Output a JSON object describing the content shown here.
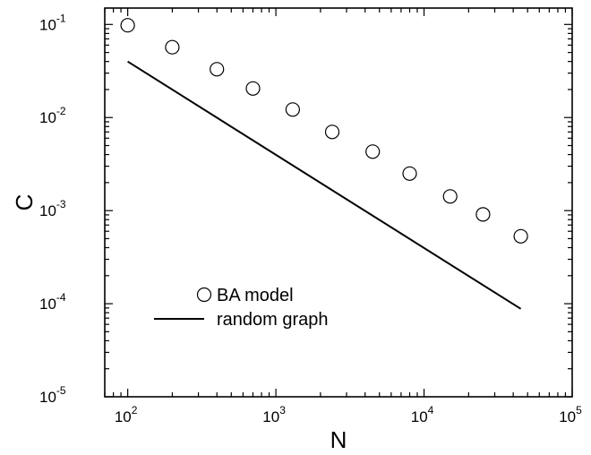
{
  "chart_data": {
    "type": "scatter",
    "xlabel": "N",
    "ylabel": "C",
    "xscale": "log",
    "yscale": "log",
    "xlim": [
      70,
      100000
    ],
    "ylim": [
      1e-05,
      0.15
    ],
    "grid": false,
    "legend_position": "bottom-left",
    "x_ticks": [
      {
        "base": "10",
        "exp": "2",
        "value": 100
      },
      {
        "base": "10",
        "exp": "3",
        "value": 1000
      },
      {
        "base": "10",
        "exp": "4",
        "value": 10000
      },
      {
        "base": "10",
        "exp": "5",
        "value": 100000
      }
    ],
    "y_ticks": [
      {
        "base": "10",
        "exp": "-5",
        "value": 1e-05
      },
      {
        "base": "10",
        "exp": "-4",
        "value": 0.0001
      },
      {
        "base": "10",
        "exp": "-3",
        "value": 0.001
      },
      {
        "base": "10",
        "exp": "-2",
        "value": 0.01
      },
      {
        "base": "10",
        "exp": "-1",
        "value": 0.1
      }
    ],
    "series": [
      {
        "name": "BA model",
        "style": "open-circle",
        "points": [
          {
            "x": 100,
            "y": 0.098
          },
          {
            "x": 200,
            "y": 0.057
          },
          {
            "x": 400,
            "y": 0.033
          },
          {
            "x": 700,
            "y": 0.0205
          },
          {
            "x": 1300,
            "y": 0.0122
          },
          {
            "x": 2400,
            "y": 0.007
          },
          {
            "x": 4500,
            "y": 0.0043
          },
          {
            "x": 8000,
            "y": 0.0025
          },
          {
            "x": 15000,
            "y": 0.00142
          },
          {
            "x": 25000,
            "y": 0.00091
          },
          {
            "x": 45000,
            "y": 0.00053
          }
        ]
      },
      {
        "name": "random graph",
        "style": "solid-line",
        "points": [
          {
            "x": 100,
            "y": 0.04
          },
          {
            "x": 45000,
            "y": 8.8e-05
          }
        ]
      }
    ]
  },
  "colors": {
    "axis": "#000000",
    "marker": "#000000",
    "background": "#ffffff"
  }
}
